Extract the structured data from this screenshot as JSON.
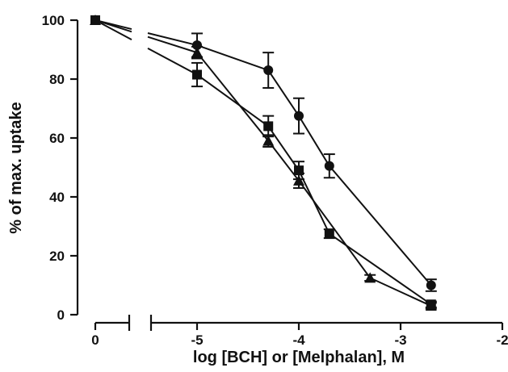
{
  "chart_data": {
    "type": "scatter",
    "title": "",
    "xlabel": "log [BCH] or [Melphalan], M",
    "ylabel": "% of max. uptake",
    "xlim": [
      -5.6,
      -2
    ],
    "ylim": [
      0,
      100
    ],
    "x_ticks": [
      {
        "value": -5,
        "label": "-5"
      },
      {
        "value": -4,
        "label": "-4"
      },
      {
        "value": -3,
        "label": "-3"
      },
      {
        "value": -2,
        "label": "-2"
      }
    ],
    "x_zero_tick": {
      "label": "0"
    },
    "y_ticks": [
      {
        "value": 0,
        "label": "0"
      },
      {
        "value": 20,
        "label": "20"
      },
      {
        "value": 40,
        "label": "40"
      },
      {
        "value": 60,
        "label": "60"
      },
      {
        "value": 80,
        "label": "80"
      },
      {
        "value": 100,
        "label": "100"
      }
    ],
    "x_axis_break": true,
    "grid": false,
    "legend": "none",
    "series": [
      {
        "marker": "circle",
        "control": 100,
        "x": [
          -5,
          -4.3,
          -4,
          -3.7,
          -2.7
        ],
        "y": [
          91.5,
          83,
          67.5,
          50.5,
          10
        ],
        "err": [
          4,
          6,
          6,
          4,
          2
        ]
      },
      {
        "marker": "square",
        "control": 100,
        "x": [
          -5,
          -4.3,
          -4,
          -3.7,
          -2.7
        ],
        "y": [
          81.5,
          64,
          49,
          27.5,
          3.5
        ],
        "err": [
          4,
          3.5,
          3,
          1.5,
          1
        ]
      },
      {
        "marker": "triangle",
        "control": 100,
        "x": [
          -5,
          -4.3,
          -4,
          -3.3,
          -2.7
        ],
        "y": [
          89,
          59,
          45.5,
          12.5,
          3
        ],
        "err": [
          2,
          2,
          2.5,
          1,
          1
        ]
      }
    ]
  }
}
